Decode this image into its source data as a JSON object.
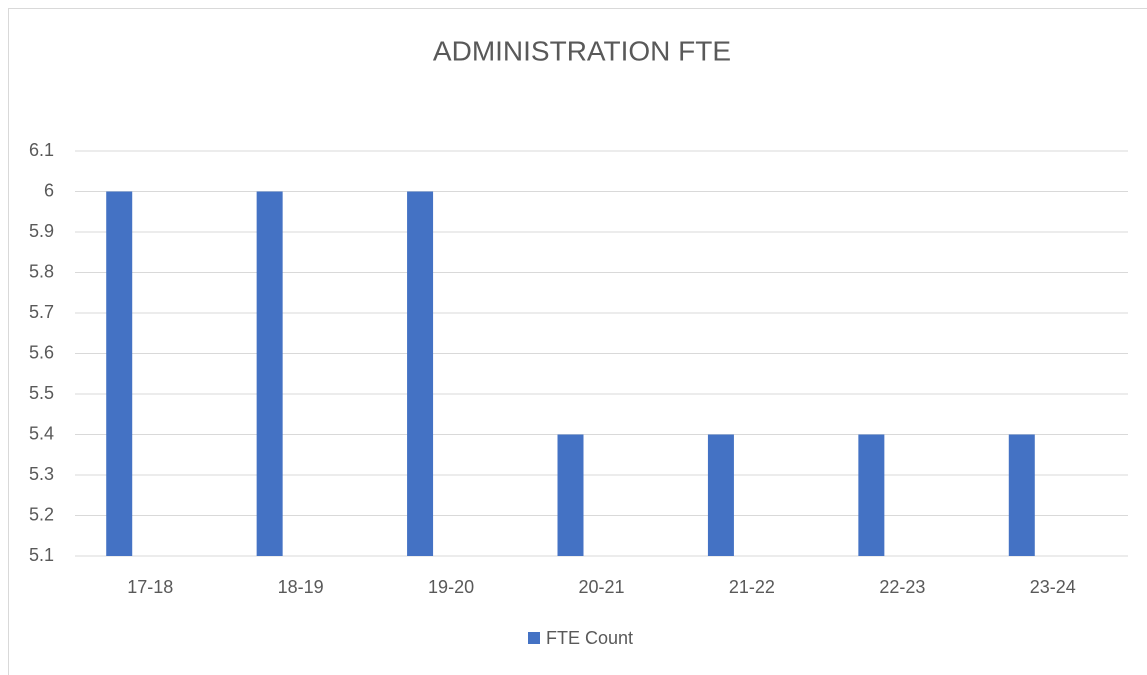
{
  "chart_data": {
    "type": "bar",
    "title": "ADMINISTRATION FTE",
    "categories": [
      "17-18",
      "18-19",
      "19-20",
      "20-21",
      "21-22",
      "22-23",
      "23-24"
    ],
    "series": [
      {
        "name": "FTE Count",
        "color": "#4472c4",
        "values": [
          6,
          6,
          6,
          5.4,
          5.4,
          5.4,
          5.4
        ]
      }
    ],
    "ylim": [
      5.1,
      6.1
    ],
    "yticks": [
      5.1,
      5.2,
      5.3,
      5.4,
      5.5,
      5.6,
      5.7,
      5.8,
      5.9,
      6,
      6.1
    ],
    "grid": true,
    "legend": "bottom"
  }
}
